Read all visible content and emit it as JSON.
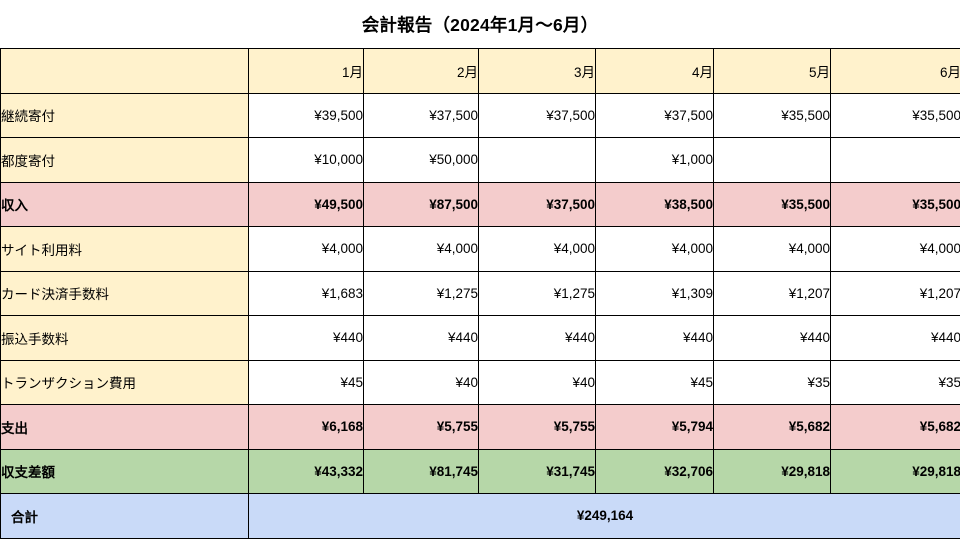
{
  "title": "会計報告（2024年1月〜6月）",
  "table": {
    "corner_label": "",
    "columns": [
      "1月",
      "2月",
      "3月",
      "4月",
      "5月",
      "6月"
    ],
    "rows": [
      {
        "name": "recurring-donation",
        "kind": "item",
        "label": "継続寄付",
        "values": [
          "¥39,500",
          "¥37,500",
          "¥37,500",
          "¥37,500",
          "¥35,500",
          "¥35,500"
        ]
      },
      {
        "name": "one-time-donation",
        "kind": "item",
        "label": "都度寄付",
        "values": [
          "¥10,000",
          "¥50,000",
          "",
          "¥1,000",
          "",
          ""
        ]
      },
      {
        "name": "income-total",
        "kind": "subtotal",
        "label": "収入",
        "values": [
          "¥49,500",
          "¥87,500",
          "¥37,500",
          "¥38,500",
          "¥35,500",
          "¥35,500"
        ]
      },
      {
        "name": "site-usage-fee",
        "kind": "item",
        "label": "サイト利用料",
        "values": [
          "¥4,000",
          "¥4,000",
          "¥4,000",
          "¥4,000",
          "¥4,000",
          "¥4,000"
        ]
      },
      {
        "name": "card-payment-fee",
        "kind": "item",
        "label": "カード決済手数料",
        "values": [
          "¥1,683",
          "¥1,275",
          "¥1,275",
          "¥1,309",
          "¥1,207",
          "¥1,207"
        ]
      },
      {
        "name": "transfer-fee",
        "kind": "item",
        "label": "振込手数料",
        "values": [
          "¥440",
          "¥440",
          "¥440",
          "¥440",
          "¥440",
          "¥440"
        ]
      },
      {
        "name": "transaction-cost",
        "kind": "item",
        "label": "トランザクション費用",
        "values": [
          "¥45",
          "¥40",
          "¥40",
          "¥45",
          "¥35",
          "¥35"
        ]
      },
      {
        "name": "expense-total",
        "kind": "subtotal",
        "label": "支出",
        "values": [
          "¥6,168",
          "¥5,755",
          "¥5,755",
          "¥5,794",
          "¥5,682",
          "¥5,682"
        ]
      },
      {
        "name": "net-balance",
        "kind": "balance",
        "label": "収支差額",
        "values": [
          "¥43,332",
          "¥81,745",
          "¥31,745",
          "¥32,706",
          "¥29,818",
          "¥29,818"
        ]
      }
    ],
    "grand_total": {
      "label": "合計",
      "value": "¥249,164"
    }
  },
  "colors": {
    "header_bg": "#FFF2CC",
    "subtotal_bg": "#F4CCCC",
    "balance_bg": "#B6D7A8",
    "grand_total_bg": "#C9DAF8",
    "border": "#000000"
  },
  "chart_data": {
    "type": "table",
    "title": "会計報告（2024年1月〜6月）",
    "currency": "JPY",
    "columns": [
      "1月",
      "2月",
      "3月",
      "4月",
      "5月",
      "6月"
    ],
    "rows": [
      {
        "label": "継続寄付",
        "values": [
          39500,
          37500,
          37500,
          37500,
          35500,
          35500
        ]
      },
      {
        "label": "都度寄付",
        "values": [
          10000,
          50000,
          null,
          1000,
          null,
          null
        ]
      },
      {
        "label": "収入",
        "values": [
          49500,
          87500,
          37500,
          38500,
          35500,
          35500
        ]
      },
      {
        "label": "サイト利用料",
        "values": [
          4000,
          4000,
          4000,
          4000,
          4000,
          4000
        ]
      },
      {
        "label": "カード決済手数料",
        "values": [
          1683,
          1275,
          1275,
          1309,
          1207,
          1207
        ]
      },
      {
        "label": "振込手数料",
        "values": [
          440,
          440,
          440,
          440,
          440,
          440
        ]
      },
      {
        "label": "トランザクション費用",
        "values": [
          45,
          40,
          40,
          45,
          35,
          35
        ]
      },
      {
        "label": "支出",
        "values": [
          6168,
          5755,
          5755,
          5794,
          5682,
          5682
        ]
      },
      {
        "label": "収支差額",
        "values": [
          43332,
          81745,
          31745,
          32706,
          29818,
          29818
        ]
      }
    ],
    "total": {
      "label": "合計",
      "value": 249164
    }
  }
}
